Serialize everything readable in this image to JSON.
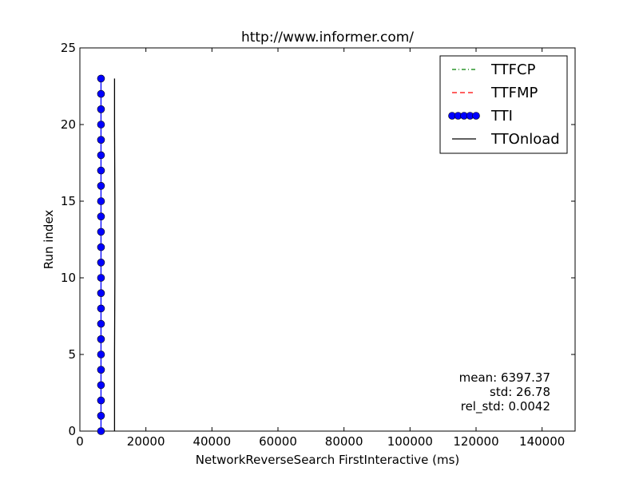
{
  "chart_data": {
    "type": "line",
    "title": "http://www.informer.com/",
    "xlabel": "NetworkReverseSearch FirstInteractive (ms)",
    "ylabel": "Run index",
    "xlim": [
      0,
      150000
    ],
    "ylim": [
      0,
      25
    ],
    "xticks": [
      0,
      20000,
      40000,
      60000,
      80000,
      100000,
      120000,
      140000
    ],
    "xtick_labels": [
      "0",
      "20000",
      "40000",
      "60000",
      "80000",
      "100000",
      "120000",
      "140000"
    ],
    "yticks": [
      0,
      5,
      10,
      15,
      20,
      25
    ],
    "ytick_labels": [
      "0",
      "5",
      "10",
      "15",
      "20",
      "25"
    ],
    "grid": false,
    "legend_position": "top-right",
    "series": [
      {
        "name": "TTFCP",
        "color": "#008000",
        "style": "dashdot",
        "marker": "none",
        "x": [],
        "y": []
      },
      {
        "name": "TTFMP",
        "color": "#ff0000",
        "style": "dashed",
        "marker": "none",
        "x": [],
        "y": []
      },
      {
        "name": "TTI",
        "color": "#0000ff",
        "style": "solid",
        "marker": "circle",
        "x": [
          6400,
          6400,
          6400,
          6400,
          6400,
          6400,
          6400,
          6400,
          6400,
          6400,
          6400,
          6400,
          6400,
          6400,
          6400,
          6400,
          6400,
          6400,
          6400,
          6400,
          6400,
          6400,
          6400,
          6400
        ],
        "y": [
          0,
          1,
          2,
          3,
          4,
          5,
          6,
          7,
          8,
          9,
          10,
          11,
          12,
          13,
          14,
          15,
          16,
          17,
          18,
          19,
          20,
          21,
          22,
          23
        ]
      },
      {
        "name": "TTOnload",
        "color": "#000000",
        "style": "solid",
        "marker": "none",
        "x": [
          10500,
          10500,
          10600,
          10600,
          10500,
          10500
        ],
        "y": [
          0,
          5,
          10,
          15,
          20,
          23
        ]
      }
    ],
    "annotations": [
      "mean: 6397.37",
      "std: 26.78",
      "rel_std: 0.0042"
    ]
  }
}
